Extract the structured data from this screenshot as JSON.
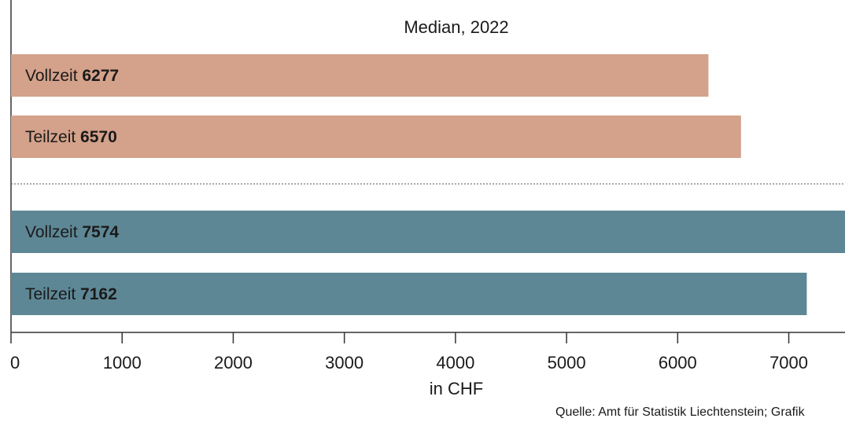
{
  "chart_data": {
    "type": "bar",
    "orientation": "horizontal",
    "subtitle": "Median, 2022",
    "xlabel": "in CHF",
    "xlim": [
      0,
      7500
    ],
    "xticks": [
      0,
      1000,
      2000,
      3000,
      4000,
      5000,
      6000,
      7000
    ],
    "groups": [
      {
        "color": "#d4a18a",
        "bars": [
          {
            "label": "Vollzeit",
            "value": 6277,
            "value_text": "6277"
          },
          {
            "label": "Teilzeit",
            "value": 6570,
            "value_text": "6570"
          }
        ]
      },
      {
        "color": "#5e8795",
        "bars": [
          {
            "label": "Vollzeit",
            "value": 7574,
            "value_text": "7574"
          },
          {
            "label": "Teilzeit",
            "value": 7162,
            "value_text": "7162"
          }
        ]
      }
    ],
    "source": "Quelle: Amt für Statistik Liechtenstein; Grafik"
  }
}
